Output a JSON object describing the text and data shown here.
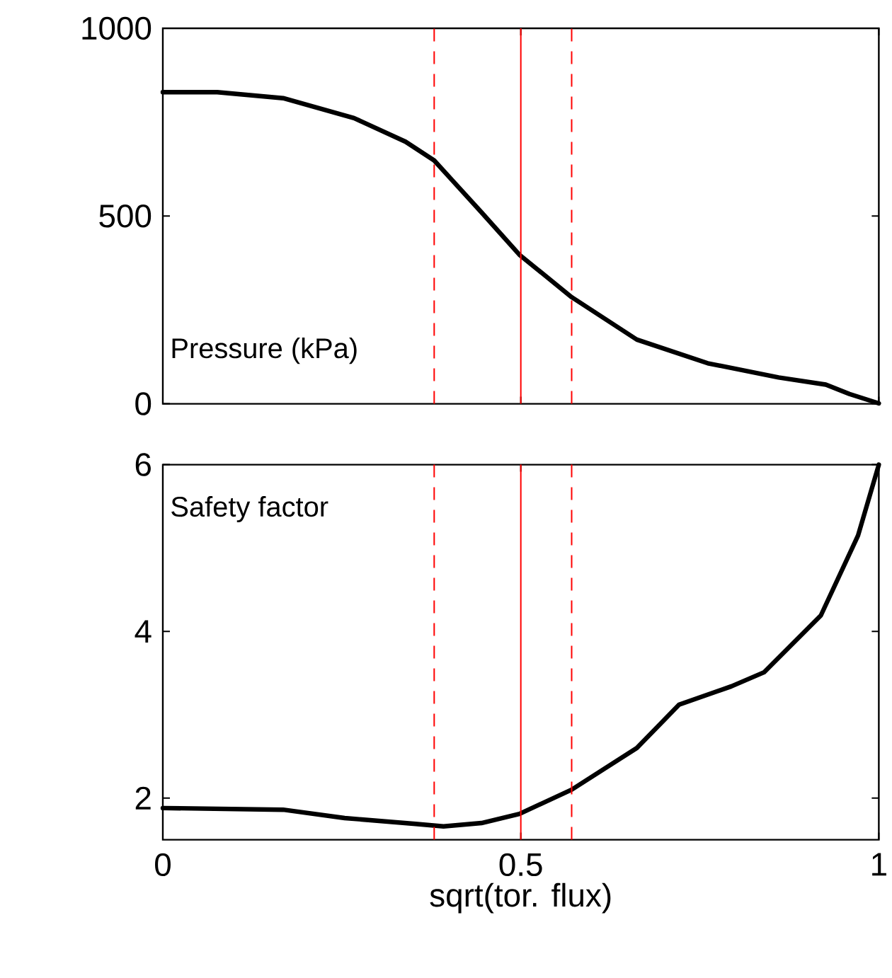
{
  "chart_data": [
    {
      "type": "line",
      "ylabel": "Pressure (kPa)",
      "xlim": [
        0,
        1
      ],
      "ylim": [
        0,
        1000
      ],
      "xticks": [
        0,
        0.5,
        1
      ],
      "yticks": [
        0,
        500,
        1000
      ],
      "tick_labels": "y",
      "series": [
        {
          "color": "#000000",
          "x": [
            0,
            0.076,
            0.168,
            0.267,
            0.339,
            0.379,
            0.445,
            0.498,
            0.571,
            0.662,
            0.761,
            0.86,
            0.926,
            0.959,
            1
          ],
          "values": [
            830,
            830,
            814,
            761,
            698,
            648,
            510,
            397,
            284,
            171,
            108,
            70,
            51,
            26,
            1
          ]
        }
      ],
      "ref_lines": [
        {
          "axis": "x",
          "value": 0.379,
          "color": "#ff0000",
          "line_style": "dashed"
        },
        {
          "axis": "x",
          "value": 0.5,
          "color": "#ff0000",
          "line_style": "solid"
        },
        {
          "axis": "x",
          "value": 0.571,
          "color": "#ff0000",
          "line_style": "dashed"
        }
      ]
    },
    {
      "type": "line",
      "ylabel": "Safety factor",
      "xlabel": "sqrt(tor. flux)",
      "xlim": [
        0,
        1
      ],
      "ylim": [
        1.5,
        6
      ],
      "xticks": [
        0,
        0.5,
        1
      ],
      "yticks": [
        2,
        4,
        6
      ],
      "series": [
        {
          "color": "#000000",
          "x": [
            0,
            0.168,
            0.254,
            0.353,
            0.392,
            0.445,
            0.498,
            0.571,
            0.662,
            0.721,
            0.794,
            0.84,
            0.919,
            0.971,
            1
          ],
          "values": [
            1.88,
            1.86,
            1.76,
            1.69,
            1.66,
            1.7,
            1.81,
            2.1,
            2.6,
            3.12,
            3.34,
            3.51,
            4.19,
            5.15,
            6
          ]
        }
      ],
      "ref_lines": [
        {
          "axis": "x",
          "value": 0.379,
          "color": "#ff0000",
          "line_style": "dashed"
        },
        {
          "axis": "x",
          "value": 0.5,
          "color": "#ff0000",
          "line_style": "solid"
        },
        {
          "axis": "x",
          "value": 0.571,
          "color": "#ff0000",
          "line_style": "dashed"
        }
      ]
    }
  ]
}
